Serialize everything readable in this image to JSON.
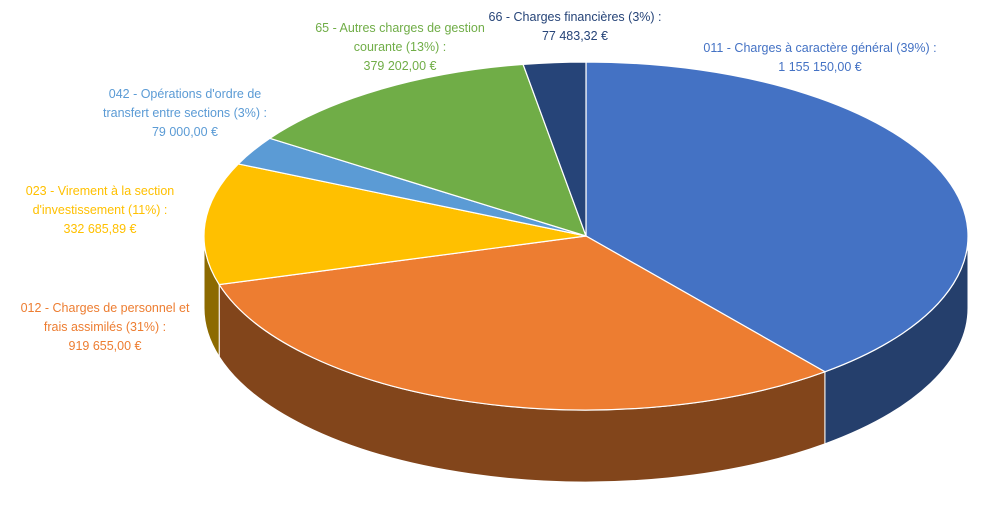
{
  "chart_data": {
    "type": "pie3d",
    "categories": [
      "011 - Charges à caractère général (39%) :",
      "012 - Charges de personnel et frais assimilés (31%) :",
      "023 - Virement à la section d'investissement (11%) :",
      "042 - Opérations d'ordre de transfert entre sections (3%) :",
      "65 - Autres charges de gestion courante (13%) :",
      "66 - Charges financières (3%) :"
    ],
    "values": [
      1155150.0,
      919655.0,
      332685.89,
      79000.0,
      379202.0,
      77483.32
    ],
    "value_labels": [
      "1 155 150,00 €",
      "919 655,00 €",
      "332 685,89 €",
      "79 000,00 €",
      "379 202,00 €",
      "77 483,32 €"
    ],
    "colors": [
      "#4472c4",
      "#ed7d31",
      "#ffc000",
      "#5b9bd5",
      "#70ad47",
      "#264478"
    ]
  }
}
